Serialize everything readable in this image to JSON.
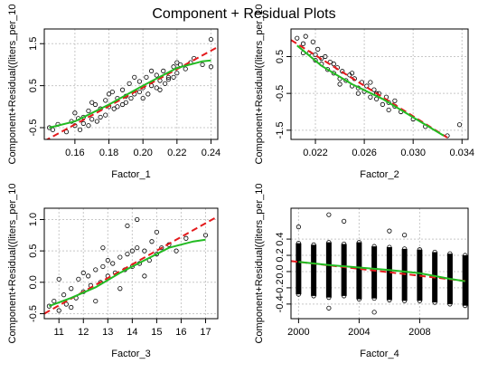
{
  "figure": {
    "title": "Component + Residual Plots"
  },
  "styles": {
    "point_color": "#000000",
    "fit_line_color": "#e41a1c",
    "smooth_line_color": "#22bb22",
    "grid_color": "#c8c8c8",
    "frame_color": "#000000"
  },
  "chart_data": [
    {
      "type": "scatter",
      "title": "",
      "xlabel": "Factor_1",
      "ylabel": "Component+Residual((liters_per_10",
      "xlim": [
        0.142,
        0.244
      ],
      "ylim": [
        -0.78,
        1.85
      ],
      "xticks": [
        0.16,
        0.18,
        0.2,
        0.22,
        0.24
      ],
      "xtick_labels": [
        "0.16",
        "0.18",
        "0.20",
        "0.22",
        "0.24"
      ],
      "yticks": [
        -0.5,
        0.5,
        1.5
      ],
      "ytick_labels": [
        "-0.5",
        "0.5",
        "1.5"
      ],
      "grid": true,
      "fit_line": {
        "x": [
          0.142,
          0.244
        ],
        "y": [
          -0.82,
          1.42
        ]
      },
      "smooth_line": {
        "x": [
          0.145,
          0.16,
          0.18,
          0.2,
          0.22,
          0.235,
          0.24
        ],
        "y": [
          -0.5,
          -0.35,
          0.05,
          0.5,
          0.92,
          1.08,
          1.1
        ]
      },
      "points": {
        "x": [
          0.145,
          0.147,
          0.15,
          0.155,
          0.158,
          0.16,
          0.162,
          0.165,
          0.168,
          0.17,
          0.172,
          0.175,
          0.178,
          0.18,
          0.182,
          0.185,
          0.188,
          0.19,
          0.192,
          0.195,
          0.198,
          0.2,
          0.202,
          0.205,
          0.208,
          0.21,
          0.212,
          0.215,
          0.218,
          0.22,
          0.222,
          0.225,
          0.228,
          0.23,
          0.235,
          0.24,
          0.24,
          0.16,
          0.165,
          0.17,
          0.175,
          0.18,
          0.185,
          0.19,
          0.195,
          0.2,
          0.205,
          0.21,
          0.215,
          0.22,
          0.163,
          0.168,
          0.173,
          0.178,
          0.183,
          0.188,
          0.193,
          0.198,
          0.203,
          0.208,
          0.213,
          0.218
        ],
        "y": [
          -0.5,
          -0.55,
          -0.42,
          -0.6,
          -0.35,
          -0.45,
          -0.28,
          -0.25,
          -0.1,
          -0.3,
          0.05,
          -0.05,
          0.15,
          0.0,
          0.35,
          0.2,
          0.4,
          0.1,
          0.55,
          0.3,
          0.6,
          0.45,
          0.7,
          0.5,
          0.75,
          0.62,
          0.85,
          0.7,
          0.95,
          0.8,
          1.0,
          0.9,
          1.05,
          1.15,
          1.0,
          0.95,
          1.6,
          -0.15,
          -0.4,
          0.1,
          -0.25,
          0.3,
          0.0,
          0.25,
          0.7,
          0.2,
          0.85,
          0.4,
          0.65,
          1.05,
          -0.55,
          -0.45,
          -0.35,
          -0.2,
          -0.05,
          0.05,
          0.2,
          0.35,
          0.3,
          0.45,
          0.55,
          0.7
        ]
      }
    },
    {
      "type": "scatter",
      "title": "",
      "xlabel": "Factor_2",
      "ylabel": "Component+Residual((liters_per_10",
      "xlim": [
        0.02,
        0.0345
      ],
      "ylim": [
        -1.75,
        1.25
      ],
      "xticks": [
        0.022,
        0.026,
        0.03,
        0.034
      ],
      "xtick_labels": [
        "0.022",
        "0.026",
        "0.030",
        "0.034"
      ],
      "yticks": [
        -1.5,
        -0.5,
        0.5
      ],
      "ytick_labels": [
        "-1.5",
        "-0.5",
        "0.5"
      ],
      "grid": true,
      "fit_line": {
        "x": [
          0.02,
          0.0328
        ],
        "y": [
          0.95,
          -1.7
        ]
      },
      "smooth_line": {
        "x": [
          0.0205,
          0.0225,
          0.025,
          0.0275,
          0.03,
          0.0325
        ],
        "y": [
          0.8,
          0.25,
          -0.25,
          -0.65,
          -1.15,
          -1.65
        ]
      },
      "points": {
        "x": [
          0.0205,
          0.021,
          0.0212,
          0.0215,
          0.0218,
          0.022,
          0.0222,
          0.0225,
          0.0228,
          0.023,
          0.0232,
          0.0235,
          0.0238,
          0.024,
          0.0242,
          0.0245,
          0.0248,
          0.025,
          0.0252,
          0.0255,
          0.0258,
          0.026,
          0.0262,
          0.0265,
          0.0268,
          0.027,
          0.0272,
          0.0275,
          0.0278,
          0.028,
          0.0285,
          0.029,
          0.03,
          0.031,
          0.0328,
          0.0338,
          0.021,
          0.0225,
          0.024,
          0.0255,
          0.027,
          0.0285,
          0.022,
          0.0235,
          0.025,
          0.0265,
          0.028
        ],
        "y": [
          1.0,
          0.85,
          1.05,
          0.6,
          0.9,
          0.4,
          0.7,
          0.3,
          0.5,
          0.15,
          0.35,
          0.05,
          0.2,
          -0.1,
          0.1,
          -0.15,
          0.0,
          -0.3,
          -0.1,
          -0.35,
          -0.2,
          -0.45,
          -0.3,
          -0.6,
          -0.4,
          -0.65,
          -0.5,
          -0.8,
          -0.6,
          -0.95,
          -0.85,
          -1.0,
          -1.2,
          -1.4,
          -1.65,
          -1.35,
          0.6,
          0.45,
          -0.25,
          -0.5,
          -0.5,
          -0.7,
          0.55,
          0.3,
          0.05,
          -0.2,
          -0.75
        ]
      }
    },
    {
      "type": "scatter",
      "title": "",
      "xlabel": "Factor_3",
      "ylabel": "Component+Residual((liters_per_10",
      "xlim": [
        10.4,
        17.5
      ],
      "ylim": [
        -0.58,
        1.18
      ],
      "xticks": [
        11,
        12,
        13,
        14,
        15,
        16,
        17
      ],
      "xtick_labels": [
        "11",
        "12",
        "13",
        "14",
        "15",
        "16",
        "17"
      ],
      "yticks": [
        -0.5,
        0.0,
        0.5,
        1.0
      ],
      "ytick_labels": [
        "-0.5",
        "0.0",
        "0.5",
        "1.0"
      ],
      "grid": true,
      "fit_line": {
        "x": [
          10.4,
          17.5
        ],
        "y": [
          -0.5,
          1.05
        ]
      },
      "smooth_line": {
        "x": [
          10.6,
          11.5,
          12.5,
          13.5,
          14.5,
          15.5,
          16.5,
          17.0
        ],
        "y": [
          -0.38,
          -0.25,
          -0.08,
          0.15,
          0.35,
          0.55,
          0.65,
          0.68
        ]
      },
      "points": {
        "x": [
          10.6,
          10.8,
          11.0,
          11.2,
          11.3,
          11.5,
          11.7,
          11.8,
          12.0,
          12.2,
          12.3,
          12.5,
          12.7,
          12.8,
          13.0,
          13.2,
          13.3,
          13.5,
          13.7,
          13.8,
          14.0,
          14.2,
          14.3,
          14.5,
          14.7,
          14.8,
          15.0,
          15.2,
          15.5,
          15.8,
          16.2,
          17.0,
          11.0,
          11.5,
          12.0,
          12.5,
          13.0,
          13.5,
          14.0,
          14.5,
          15.0,
          14.2,
          13.8,
          12.8
        ],
        "y": [
          -0.38,
          -0.3,
          -0.45,
          -0.2,
          -0.35,
          -0.1,
          -0.25,
          0.05,
          -0.15,
          0.1,
          -0.05,
          0.2,
          0.0,
          0.25,
          0.1,
          0.3,
          0.15,
          0.4,
          0.2,
          0.45,
          0.25,
          0.55,
          0.3,
          0.5,
          0.35,
          0.65,
          0.45,
          0.55,
          0.6,
          0.5,
          0.7,
          0.75,
          0.05,
          -0.4,
          0.15,
          -0.3,
          0.35,
          -0.1,
          0.5,
          0.1,
          0.8,
          1.0,
          0.9,
          0.55
        ]
      }
    },
    {
      "type": "scatter",
      "title": "",
      "xlabel": "Factor_4",
      "ylabel": "Component+Residual((liters_per_10",
      "xlim": [
        1999.5,
        2011.2
      ],
      "ylim": [
        -0.58,
        0.78
      ],
      "xticks": [
        2000,
        2004,
        2008
      ],
      "xtick_labels": [
        "2000",
        "2004",
        "2008"
      ],
      "yticks": [
        -0.4,
        -0.2,
        0.0,
        0.2,
        0.4
      ],
      "ytick_labels": [
        "-0.4",
        "-0.2",
        "0.0",
        "0.2",
        "0.4"
      ],
      "grid": true,
      "fit_line": {
        "x": [
          1999.5,
          2011.2
        ],
        "y": [
          0.13,
          -0.12
        ]
      },
      "smooth_line": {
        "x": [
          2000,
          2002,
          2004,
          2006,
          2008,
          2010,
          2011
        ],
        "y": [
          0.12,
          0.08,
          0.05,
          0.02,
          -0.02,
          -0.09,
          -0.12
        ]
      },
      "strip_points": {
        "years": [
          2000,
          2001,
          2002,
          2003,
          2004,
          2005,
          2006,
          2007,
          2008,
          2009,
          2010,
          2011
        ],
        "low": [
          -0.28,
          -0.3,
          -0.32,
          -0.3,
          -0.34,
          -0.33,
          -0.35,
          -0.36,
          -0.36,
          -0.38,
          -0.4,
          -0.42
        ],
        "high": [
          0.35,
          0.33,
          0.36,
          0.34,
          0.36,
          0.31,
          0.3,
          0.28,
          0.27,
          0.24,
          0.22,
          0.2
        ],
        "outliers_x": [
          2000,
          2002,
          2003,
          2002,
          2006,
          2005,
          2007
        ],
        "outliers_y": [
          0.55,
          0.7,
          0.62,
          -0.45,
          0.5,
          -0.5,
          0.45
        ]
      }
    }
  ]
}
